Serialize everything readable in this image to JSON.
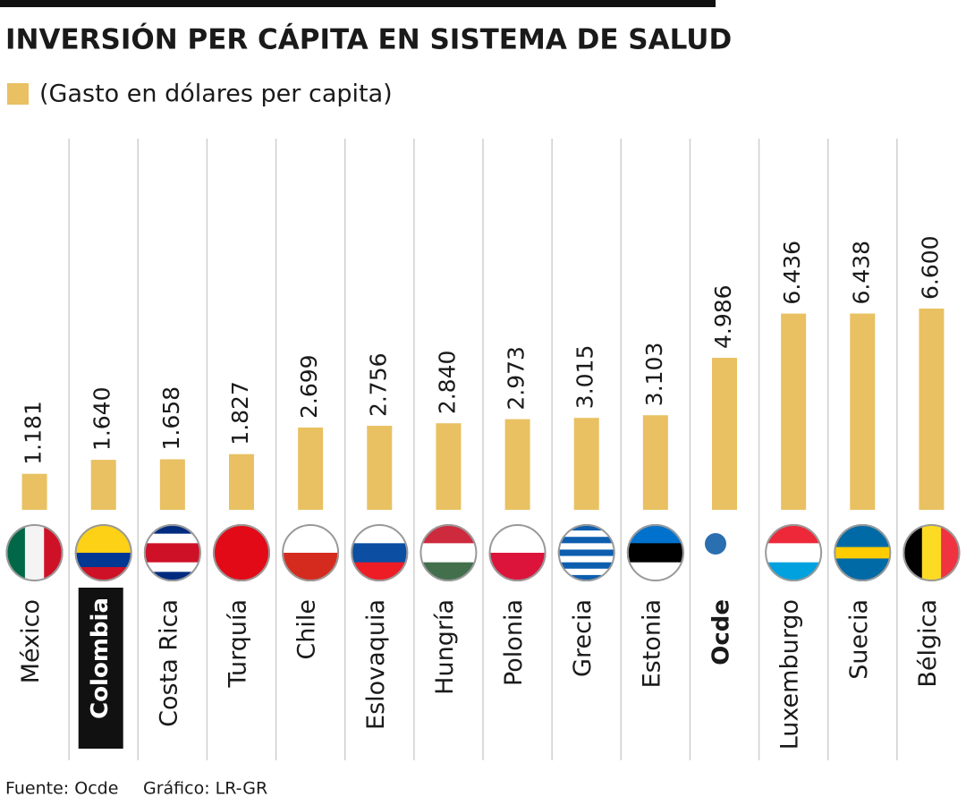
{
  "chart_data": {
    "type": "bar",
    "title": "INVERSIÓN PER CÁPITA EN SISTEMA DE SALUD",
    "categories": [
      "México",
      "Colombia",
      "Costa Rica",
      "Turquía",
      "Chile",
      "Eslovaquia",
      "Hungría",
      "Polonia",
      "Grecia",
      "Estonia",
      "Ocde",
      "Luxemburgo",
      "Suecia",
      "Bélgica"
    ],
    "series": [
      {
        "name": "(Gasto en dólares per capita)",
        "color": "#e9c162",
        "values": [
          1181,
          1640,
          1658,
          1827,
          2699,
          2756,
          2840,
          2973,
          3015,
          3103,
          4986,
          6436,
          6438,
          6600
        ],
        "value_labels": [
          "1.181",
          "1.640",
          "1.658",
          "1.827",
          "2.699",
          "2.756",
          "2.840",
          "2.973",
          "3.015",
          "3.103",
          "4.986",
          "6.436",
          "6.438",
          "6.600"
        ]
      }
    ],
    "source": "Fuente: Ocde",
    "credit": "Gráfico: LR-GR"
  }
}
